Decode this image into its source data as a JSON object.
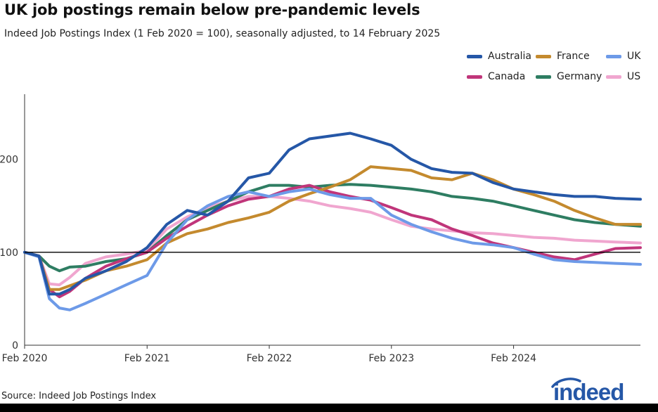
{
  "title": "UK job postings remain below pre-pandemic levels",
  "subtitle": "Indeed Job Postings Index (1 Feb 2020 = 100), seasonally adjusted, to 14 February 2025",
  "source": "Source: Indeed Job Postings Index",
  "brand": "indeed",
  "colors": {
    "Australia": "#2557a7",
    "Canada": "#c0357a",
    "France": "#c48a2e",
    "Germany": "#2e7d62",
    "UK": "#6d9ae8",
    "US": "#f0a6cf",
    "reference_line": "#000000",
    "brand": "#2557a7"
  },
  "chart_data": {
    "type": "line",
    "title": "UK job postings remain below pre-pandemic levels",
    "subtitle": "Indeed Job Postings Index (1 Feb 2020 = 100), seasonally adjusted, to 14 February 2025",
    "xlabel": "",
    "ylabel": "",
    "x_ticks": [
      "Feb 2020",
      "Feb 2021",
      "Feb 2022",
      "Feb 2023",
      "Feb 2024"
    ],
    "y_ticks": [
      0,
      100,
      200
    ],
    "ylim": [
      0,
      270
    ],
    "xlim": [
      "2020-02-01",
      "2025-02-14"
    ],
    "reference_line": 100,
    "grid": false,
    "legend_position": "top-right",
    "legend": [
      "Australia",
      "France",
      "UK",
      "Canada",
      "Germany",
      "US"
    ],
    "x": [
      "2020-02-01",
      "2020-03-15",
      "2020-04-15",
      "2020-05-15",
      "2020-06-15",
      "2020-08-01",
      "2020-10-01",
      "2020-12-01",
      "2021-02-01",
      "2021-04-01",
      "2021-06-01",
      "2021-08-01",
      "2021-10-01",
      "2021-12-01",
      "2022-02-01",
      "2022-04-01",
      "2022-06-01",
      "2022-08-01",
      "2022-10-01",
      "2022-12-01",
      "2023-02-01",
      "2023-04-01",
      "2023-06-01",
      "2023-08-01",
      "2023-10-01",
      "2023-12-01",
      "2024-02-01",
      "2024-04-01",
      "2024-06-01",
      "2024-08-01",
      "2024-10-01",
      "2024-12-01",
      "2025-02-14"
    ],
    "series": [
      {
        "name": "Australia",
        "values": [
          100,
          96,
          55,
          55,
          60,
          72,
          80,
          90,
          105,
          130,
          145,
          140,
          155,
          180,
          185,
          210,
          222,
          225,
          228,
          222,
          215,
          200,
          190,
          186,
          185,
          175,
          168,
          165,
          162,
          160,
          160,
          158,
          157
        ]
      },
      {
        "name": "France",
        "values": [
          100,
          96,
          60,
          60,
          64,
          70,
          80,
          85,
          92,
          110,
          120,
          125,
          132,
          137,
          143,
          155,
          163,
          170,
          178,
          192,
          190,
          188,
          180,
          178,
          185,
          178,
          168,
          162,
          155,
          145,
          137,
          130,
          130
        ]
      },
      {
        "name": "UK",
        "values": [
          100,
          95,
          50,
          40,
          38,
          45,
          55,
          65,
          75,
          110,
          135,
          150,
          160,
          165,
          160,
          165,
          168,
          162,
          158,
          158,
          140,
          130,
          122,
          115,
          110,
          108,
          105,
          98,
          92,
          90,
          89,
          88,
          87
        ]
      },
      {
        "name": "Canada",
        "values": [
          100,
          96,
          60,
          52,
          58,
          72,
          85,
          93,
          100,
          115,
          128,
          140,
          150,
          157,
          160,
          168,
          172,
          165,
          160,
          156,
          148,
          140,
          135,
          125,
          118,
          110,
          105,
          100,
          95,
          92,
          98,
          104,
          105
        ]
      },
      {
        "name": "Germany",
        "values": [
          100,
          96,
          85,
          80,
          84,
          85,
          90,
          93,
          100,
          118,
          135,
          145,
          155,
          165,
          172,
          172,
          170,
          172,
          173,
          172,
          170,
          168,
          165,
          160,
          158,
          155,
          150,
          145,
          140,
          135,
          132,
          130,
          128
        ]
      },
      {
        "name": "US",
        "values": [
          100,
          96,
          66,
          65,
          73,
          88,
          95,
          98,
          102,
          125,
          138,
          148,
          155,
          160,
          160,
          158,
          155,
          150,
          147,
          143,
          135,
          128,
          125,
          123,
          121,
          120,
          118,
          116,
          115,
          113,
          112,
          111,
          110
        ]
      }
    ]
  }
}
